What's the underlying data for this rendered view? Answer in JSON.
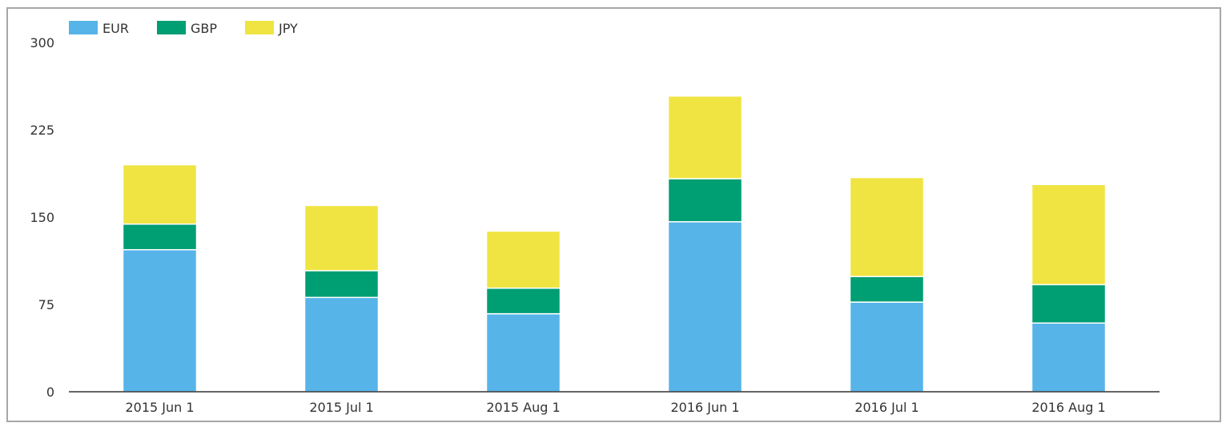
{
  "chart_data": {
    "type": "bar",
    "stacked": true,
    "categories": [
      "2015 Jun 1",
      "2015 Jul 1",
      "2015 Aug 1",
      "2016 Jun 1",
      "2016 Jul 1",
      "2016 Aug 1"
    ],
    "series": [
      {
        "name": "EUR",
        "color": "#56b4e9",
        "values": [
          122,
          81,
          67,
          146,
          77,
          59
        ]
      },
      {
        "name": "GBP",
        "color": "#009e73",
        "values": [
          22,
          23,
          22,
          37,
          22,
          33
        ]
      },
      {
        "name": "JPY",
        "color": "#f0e442",
        "values": [
          51,
          56,
          49,
          71,
          85,
          86
        ]
      }
    ],
    "yticks": [
      0,
      75,
      150,
      225,
      300
    ],
    "ylim": [
      0,
      300
    ],
    "legend_position": "top-left",
    "grid": false
  }
}
